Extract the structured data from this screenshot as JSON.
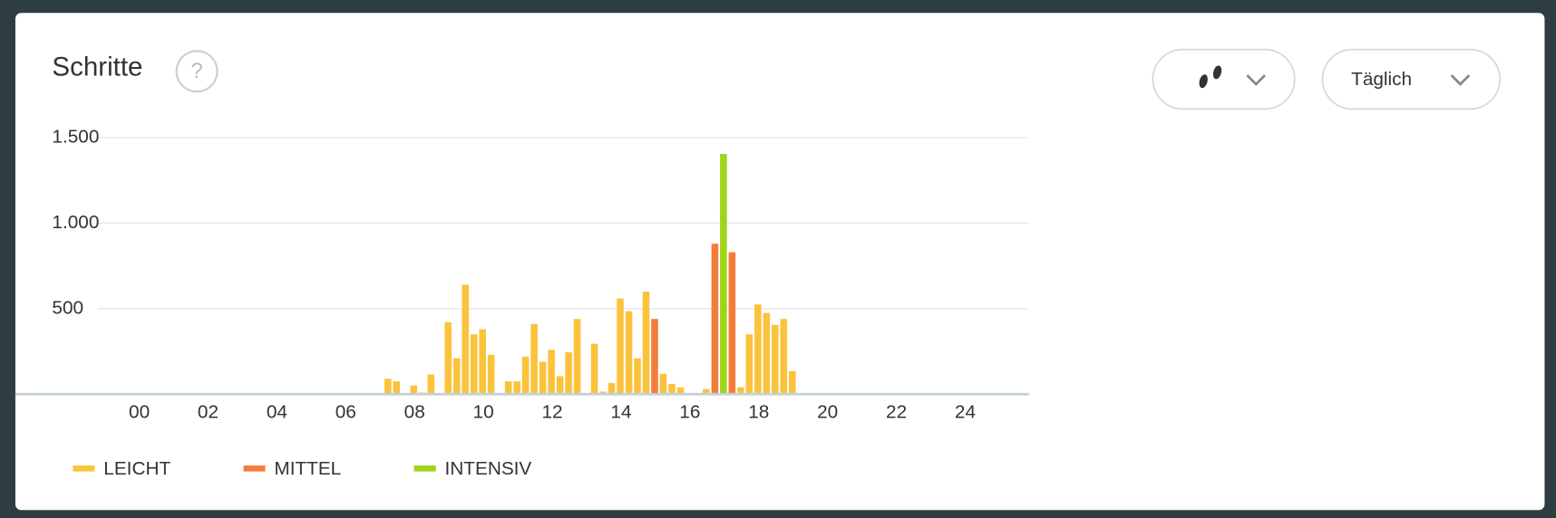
{
  "header": {
    "title": "Schritte",
    "help": "?"
  },
  "controls": {
    "period": "Täglich"
  },
  "chart_data": {
    "type": "bar",
    "stacked": true,
    "x": [
      7,
      7.25,
      7.5,
      7.75,
      8,
      8.25,
      8.5,
      8.75,
      9,
      9.25,
      9.5,
      9.75,
      10,
      10.25,
      10.5,
      10.75,
      11,
      11.25,
      11.5,
      11.75,
      12,
      12.25,
      12.5,
      12.75,
      13,
      13.25,
      13.5,
      13.75,
      14,
      14.25,
      14.5,
      14.75,
      15,
      15.25,
      15.5,
      15.75,
      16,
      16.25,
      16.5,
      16.75,
      17,
      17.25,
      17.5,
      17.75,
      18,
      18.25,
      18.5,
      18.75
    ],
    "series": [
      {
        "name": "LEICHT",
        "color": "#fbc33c",
        "values": [
          90,
          75,
          0,
          50,
          10,
          115,
          0,
          420,
          210,
          640,
          350,
          380,
          230,
          0,
          75,
          75,
          220,
          410,
          190,
          260,
          105,
          245,
          440,
          0,
          295,
          15,
          65,
          560,
          485,
          210,
          600,
          null,
          120,
          60,
          40,
          0,
          0,
          30,
          null,
          null,
          null,
          40,
          350,
          525,
          475,
          405,
          440,
          135
        ]
      },
      {
        "name": "MITTEL",
        "color": "#f47d3a",
        "values": [
          null,
          null,
          null,
          null,
          null,
          null,
          null,
          null,
          null,
          null,
          null,
          null,
          null,
          null,
          null,
          null,
          null,
          null,
          null,
          null,
          null,
          null,
          null,
          null,
          null,
          null,
          null,
          null,
          null,
          null,
          null,
          440,
          null,
          null,
          null,
          null,
          null,
          null,
          880,
          null,
          830,
          null,
          null,
          null,
          null,
          null,
          null,
          null
        ]
      },
      {
        "name": "INTENSIV",
        "color": "#9fd41b",
        "values": [
          null,
          null,
          null,
          null,
          null,
          null,
          null,
          null,
          null,
          null,
          null,
          null,
          null,
          null,
          null,
          null,
          null,
          null,
          null,
          null,
          null,
          null,
          null,
          null,
          null,
          null,
          null,
          null,
          null,
          null,
          null,
          null,
          null,
          null,
          null,
          null,
          null,
          null,
          null,
          1405,
          null,
          null,
          null,
          null,
          null,
          null,
          null,
          null
        ]
      }
    ],
    "xlim": [
      -3.6,
      25.85
    ],
    "xticks": [
      {
        "value": 0,
        "label": "00"
      },
      {
        "value": 2,
        "label": "02"
      },
      {
        "value": 4,
        "label": "04"
      },
      {
        "value": 6,
        "label": "06"
      },
      {
        "value": 8,
        "label": "08"
      },
      10,
      12,
      14,
      16,
      18,
      20,
      22,
      24
    ],
    "ylim": [
      0,
      1500
    ],
    "yticks": [
      500,
      {
        "value": 1000,
        "label": "1.000"
      },
      {
        "value": 1500,
        "label": "1.500"
      }
    ],
    "grid": true
  }
}
